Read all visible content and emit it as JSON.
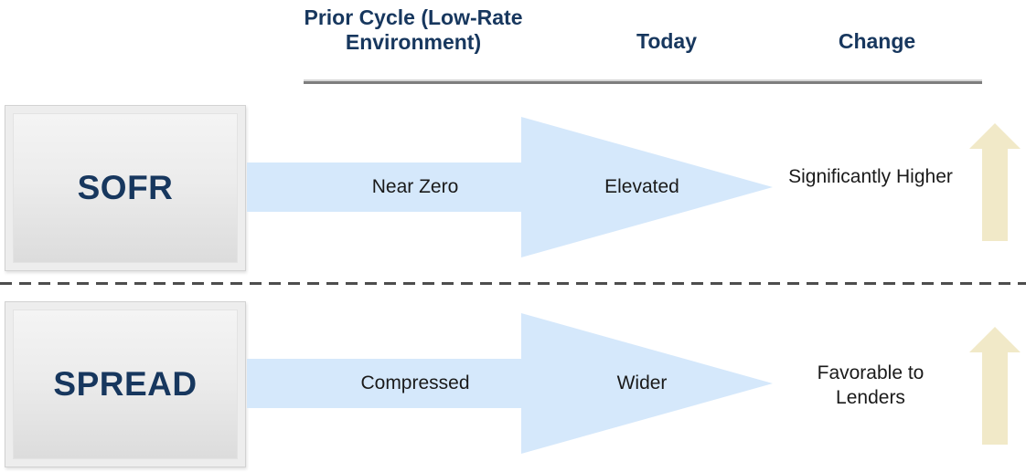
{
  "header": {
    "prior_label": "Prior Cycle (Low-Rate Environment)",
    "prior_label_line1": "Prior Cycle (Low-Rate",
    "prior_label_line2": "Environment)",
    "today_label": "Today",
    "change_label": "Change"
  },
  "rows": [
    {
      "label": "SOFR",
      "prior_value": "Near Zero",
      "today_value": "Elevated",
      "change_value": "Significantly Higher",
      "trend_icon": "up-arrow-icon",
      "flow_icon": "right-arrow-icon"
    },
    {
      "label": "SPREAD",
      "prior_value": "Compressed",
      "today_value": "Wider",
      "change_value": "Favorable to Lenders",
      "trend_icon": "up-arrow-icon",
      "flow_icon": "right-arrow-icon"
    }
  ],
  "colors": {
    "heading_navy": "#17375E",
    "flow_arrow_blue": "#D5E8FB",
    "trend_arrow_tan": "#F1E9C8",
    "header_underline_gray": "#7E7E7E",
    "divider_dash_gray": "#4D4D4D",
    "box_frame_gray": "#EDEDED",
    "box_fill_gradient_top": "#F4F4F4",
    "box_fill_gradient_bottom": "#DCDCDC",
    "body_text": "#1A1A1A"
  }
}
